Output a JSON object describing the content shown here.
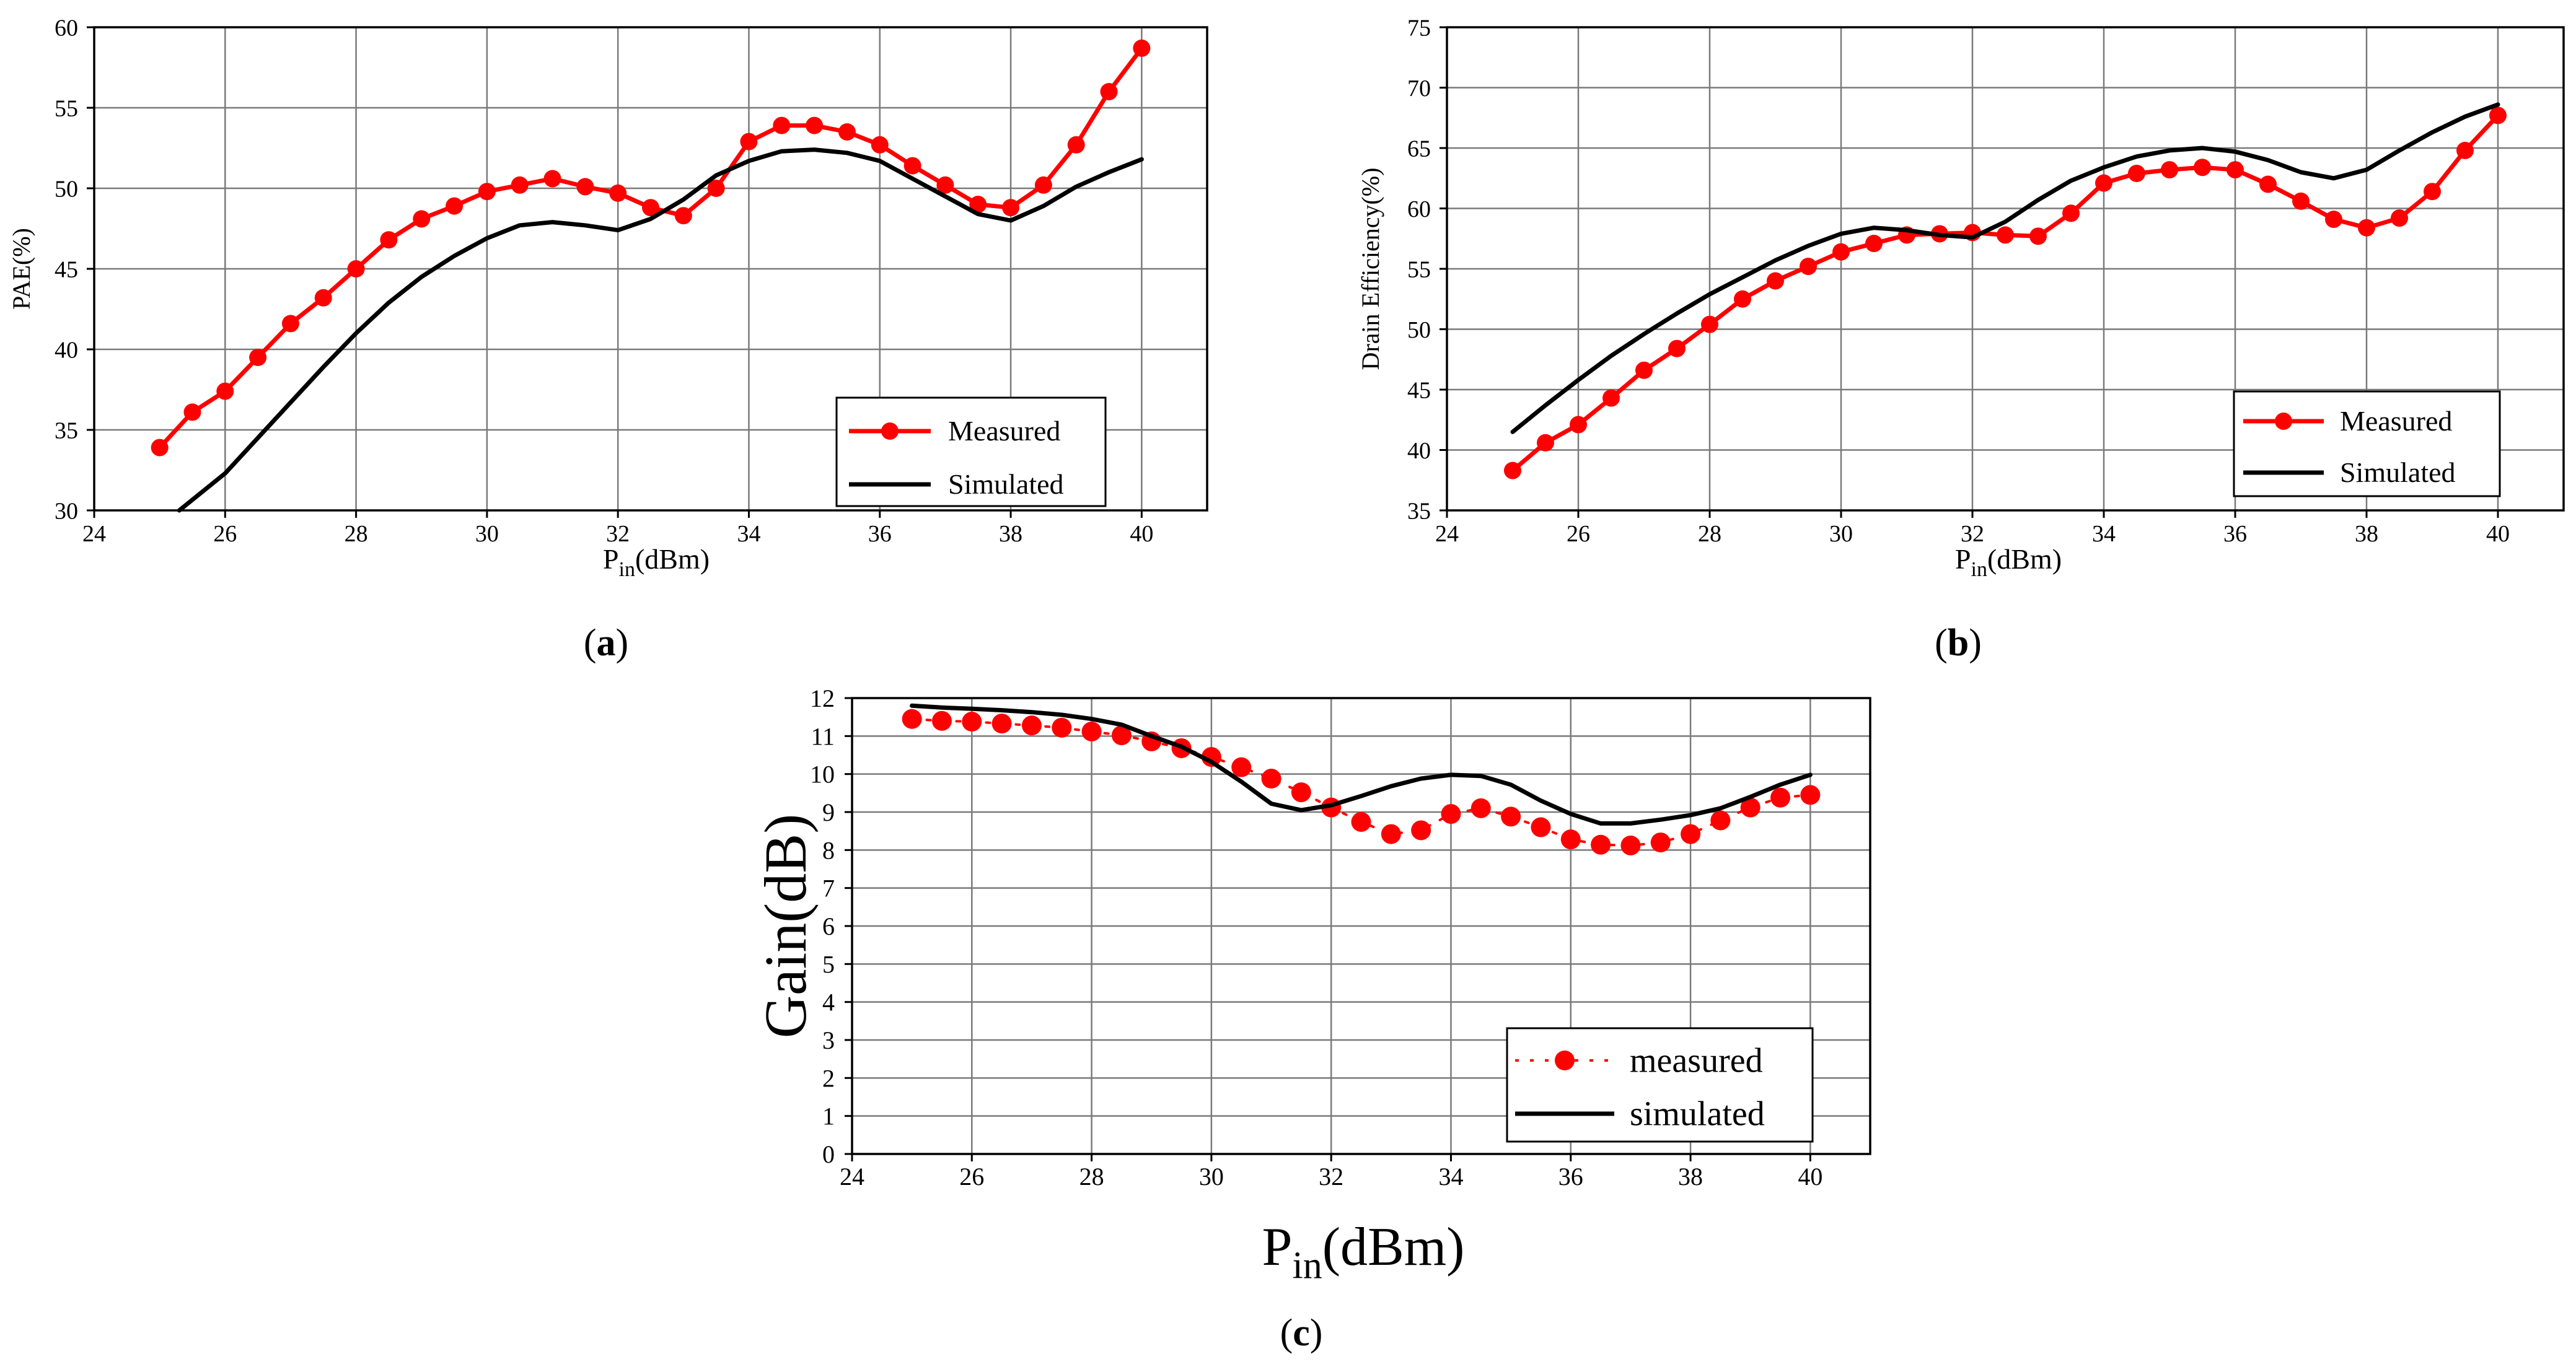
{
  "chart_data": [
    {
      "id": "a",
      "type": "line",
      "caption_letter": "a",
      "ylabel": "PAE(%)",
      "xlabel": {
        "main": "P",
        "sub": "in",
        "unit": "(dBm)"
      },
      "xlim": [
        24,
        41
      ],
      "ylim": [
        30,
        60
      ],
      "xticks": [
        24,
        26,
        28,
        30,
        32,
        34,
        36,
        38,
        40
      ],
      "yticks": [
        30,
        35,
        40,
        45,
        50,
        55,
        60
      ],
      "grid": true,
      "legend_position": "bottom-right",
      "series": [
        {
          "name": "Measured",
          "color": "#ff0000",
          "style": "line-markers",
          "x": [
            25,
            25.5,
            26,
            26.5,
            27,
            27.5,
            28,
            28.5,
            29,
            29.5,
            30,
            30.5,
            31,
            31.5,
            32,
            32.5,
            33,
            33.5,
            34,
            34.5,
            35,
            35.5,
            36,
            36.5,
            37,
            37.5,
            38,
            38.5,
            39,
            39.5,
            40
          ],
          "y": [
            33.9,
            36.1,
            37.4,
            39.5,
            41.6,
            43.2,
            45.0,
            46.8,
            48.1,
            48.9,
            49.8,
            50.2,
            50.6,
            50.1,
            49.7,
            48.8,
            48.3,
            50.0,
            52.9,
            53.9,
            53.9,
            53.5,
            52.7,
            51.4,
            50.2,
            49.0,
            48.8,
            50.2,
            52.7,
            56.0,
            58.7
          ]
        },
        {
          "name": "Simulated",
          "color": "#000000",
          "style": "line",
          "x": [
            25.3,
            26,
            26.5,
            27,
            27.5,
            28,
            28.5,
            29,
            29.5,
            30,
            30.5,
            31,
            31.5,
            32,
            32.5,
            33,
            33.5,
            34,
            34.5,
            35,
            35.5,
            36,
            36.5,
            37,
            37.5,
            38,
            38.5,
            39,
            39.5,
            40
          ],
          "y": [
            30.0,
            32.3,
            34.5,
            36.7,
            38.9,
            41.0,
            42.9,
            44.5,
            45.8,
            46.9,
            47.7,
            47.9,
            47.7,
            47.4,
            48.1,
            49.3,
            50.8,
            51.7,
            52.3,
            52.4,
            52.2,
            51.7,
            50.6,
            49.5,
            48.4,
            48.0,
            48.9,
            50.1,
            51.0,
            51.8
          ]
        }
      ]
    },
    {
      "id": "b",
      "type": "line",
      "caption_letter": "b",
      "ylabel": "Drain Efficiency(%)",
      "xlabel": {
        "main": "P",
        "sub": "in",
        "unit": "(dBm)"
      },
      "xlim": [
        24,
        41
      ],
      "ylim": [
        35,
        75
      ],
      "xticks": [
        24,
        26,
        28,
        30,
        32,
        34,
        36,
        38,
        40
      ],
      "yticks": [
        35,
        40,
        45,
        50,
        55,
        60,
        65,
        70,
        75
      ],
      "grid": true,
      "legend_position": "bottom-right",
      "series": [
        {
          "name": "Measured",
          "color": "#ff0000",
          "style": "line-markers",
          "x": [
            25,
            25.5,
            26,
            26.5,
            27,
            27.5,
            28,
            28.5,
            29,
            29.5,
            30,
            30.5,
            31,
            31.5,
            32,
            32.5,
            33,
            33.5,
            34,
            34.5,
            35,
            35.5,
            36,
            36.5,
            37,
            37.5,
            38,
            38.5,
            39,
            39.5,
            40
          ],
          "y": [
            38.3,
            40.6,
            42.1,
            44.3,
            46.6,
            48.4,
            50.4,
            52.5,
            54.0,
            55.2,
            56.4,
            57.1,
            57.8,
            57.9,
            58.0,
            57.8,
            57.7,
            59.6,
            62.1,
            62.9,
            63.2,
            63.4,
            63.2,
            62.0,
            60.6,
            59.1,
            58.4,
            59.2,
            61.4,
            64.8,
            67.7
          ]
        },
        {
          "name": "Simulated",
          "color": "#000000",
          "style": "line",
          "x": [
            25,
            25.5,
            26,
            26.5,
            27,
            27.5,
            28,
            28.5,
            29,
            29.5,
            30,
            30.5,
            31,
            31.5,
            32,
            32.5,
            33,
            33.5,
            34,
            34.5,
            35,
            35.5,
            36,
            36.5,
            37,
            37.5,
            38,
            38.5,
            39,
            39.5,
            40
          ],
          "y": [
            41.5,
            43.7,
            45.8,
            47.8,
            49.6,
            51.3,
            52.9,
            54.3,
            55.7,
            56.9,
            57.9,
            58.4,
            58.2,
            57.8,
            57.6,
            58.9,
            60.7,
            62.3,
            63.4,
            64.3,
            64.8,
            65.0,
            64.7,
            64.0,
            63.0,
            62.5,
            63.2,
            64.8,
            66.3,
            67.6,
            68.6
          ]
        }
      ]
    },
    {
      "id": "c",
      "type": "line",
      "caption_letter": "c",
      "ylabel": "Gain(dB)",
      "xlabel": {
        "main": "P",
        "sub": "in",
        "unit": "(dBm)"
      },
      "xlim": [
        24,
        41
      ],
      "ylim": [
        0,
        12
      ],
      "xticks": [
        24,
        26,
        28,
        30,
        32,
        34,
        36,
        38,
        40
      ],
      "yticks": [
        0,
        1,
        2,
        3,
        4,
        5,
        6,
        7,
        8,
        9,
        10,
        11,
        12
      ],
      "grid": true,
      "legend_position": "bottom-right",
      "series": [
        {
          "name": "measured",
          "color": "#ff0000",
          "style": "dotted-markers",
          "x": [
            25,
            25.5,
            26,
            26.5,
            27,
            27.5,
            28,
            28.5,
            29,
            29.5,
            30,
            30.5,
            31,
            31.5,
            32,
            32.5,
            33,
            33.5,
            34,
            34.5,
            35,
            35.5,
            36,
            36.5,
            37,
            37.5,
            38,
            38.5,
            39,
            39.5,
            40
          ],
          "y": [
            11.45,
            11.4,
            11.38,
            11.33,
            11.28,
            11.22,
            11.12,
            11.02,
            10.86,
            10.68,
            10.45,
            10.18,
            9.88,
            9.52,
            9.12,
            8.74,
            8.42,
            8.52,
            8.95,
            9.1,
            8.88,
            8.6,
            8.28,
            8.14,
            8.12,
            8.2,
            8.42,
            8.78,
            9.12,
            9.38,
            9.45
          ]
        },
        {
          "name": "simulated",
          "color": "#000000",
          "style": "line",
          "x": [
            25,
            25.5,
            26,
            26.5,
            27,
            27.5,
            28,
            28.5,
            29,
            29.5,
            30,
            30.5,
            31,
            31.5,
            32,
            32.5,
            33,
            33.5,
            34,
            34.5,
            35,
            35.5,
            36,
            36.5,
            37,
            37.5,
            38,
            38.5,
            39,
            39.5,
            40
          ],
          "y": [
            11.8,
            11.75,
            11.72,
            11.68,
            11.63,
            11.56,
            11.45,
            11.3,
            11.0,
            10.72,
            10.32,
            9.8,
            9.22,
            9.05,
            9.18,
            9.42,
            9.68,
            9.88,
            9.98,
            9.95,
            9.72,
            9.3,
            8.95,
            8.7,
            8.7,
            8.8,
            8.92,
            9.1,
            9.4,
            9.72,
            9.98
          ]
        }
      ]
    }
  ]
}
